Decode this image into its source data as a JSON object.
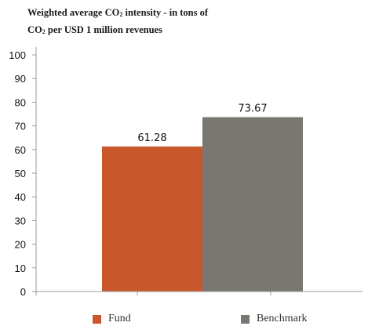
{
  "chart_data": {
    "type": "bar",
    "title_line1": "Weighted average CO",
    "title_sub1": "2",
    "title_rest1": " intensity - in tons of",
    "title_line2": "CO",
    "title_sub2": "2",
    "title_rest2": " per USD 1 million revenues",
    "categories": [
      ""
    ],
    "series": [
      {
        "name": "Fund",
        "values": [
          61.28
        ],
        "color": "#c8582c"
      },
      {
        "name": "Benchmark",
        "values": [
          73.67
        ],
        "color": "#7a7672"
      }
    ],
    "data_labels": [
      "61.28",
      "73.67"
    ],
    "ylim": [
      0,
      100
    ],
    "yticks": [
      0,
      10,
      20,
      30,
      40,
      50,
      60,
      70,
      80,
      90,
      100
    ],
    "xlabel": "",
    "ylabel": "",
    "grid": false,
    "legend_position": "bottom"
  }
}
